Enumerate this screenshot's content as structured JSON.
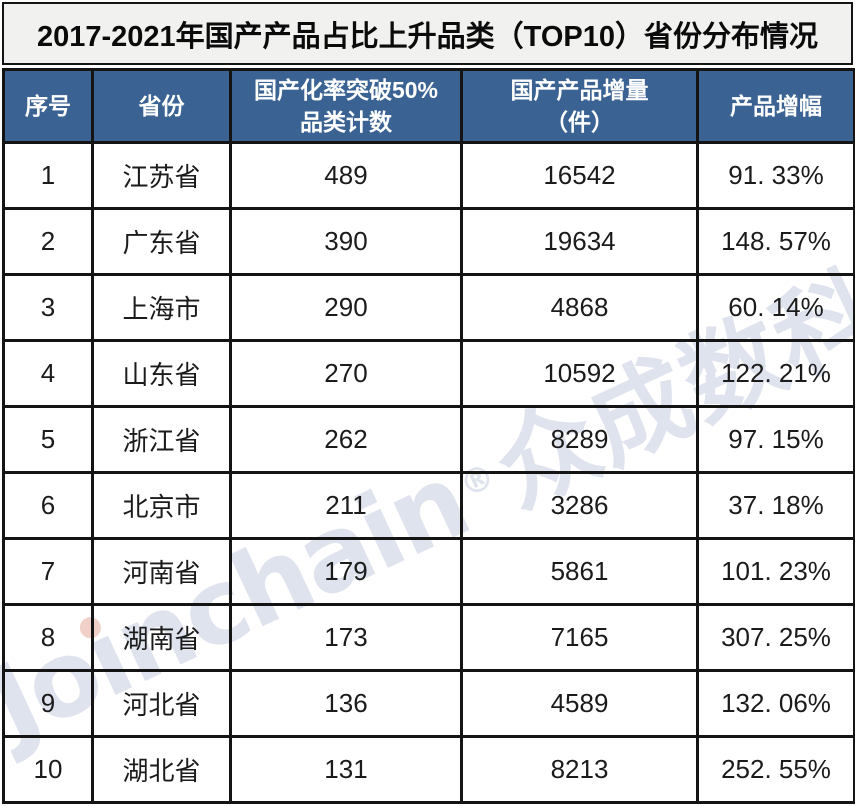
{
  "title": "2017-2021年国产产品占比上升品类（TOP10）省份分布情况",
  "watermark": {
    "text": "Joinchain®众成数科",
    "parts": [
      "Jo",
      "ı",
      "nchain"
    ],
    "reg": "®",
    "cjk": "众成数科",
    "color": "#DFE3EE",
    "dot_color": "#F1D0C9"
  },
  "colors": {
    "header_bg": "#3A6394",
    "header_text": "#FFFFFF",
    "title_bg": "#F1F1EF",
    "grid_border": "#141414",
    "body_text": "#1B1B1B"
  },
  "table": {
    "headers": [
      {
        "label": "序号",
        "lines": [
          "序号"
        ]
      },
      {
        "label": "省份",
        "lines": [
          "省份"
        ]
      },
      {
        "label": "国产化率突破50%品类计数",
        "lines": [
          "国产化率突破50%",
          "品类计数"
        ]
      },
      {
        "label": "国产产品增量（件）",
        "lines": [
          "国产产品增量",
          "（件）"
        ]
      },
      {
        "label": "产品增幅",
        "lines": [
          "产品增幅"
        ]
      }
    ],
    "rows": [
      [
        "1",
        "江苏省",
        "489",
        "16542",
        "91. 33%"
      ],
      [
        "2",
        "广东省",
        "390",
        "19634",
        "148. 57%"
      ],
      [
        "3",
        "上海市",
        "290",
        "4868",
        "60. 14%"
      ],
      [
        "4",
        "山东省",
        "270",
        "10592",
        "122. 21%"
      ],
      [
        "5",
        "浙江省",
        "262",
        "8289",
        "97. 15%"
      ],
      [
        "6",
        "北京市",
        "211",
        "3286",
        "37. 18%"
      ],
      [
        "7",
        "河南省",
        "179",
        "5861",
        "101. 23%"
      ],
      [
        "8",
        "湖南省",
        "173",
        "7165",
        "307. 25%"
      ],
      [
        "9",
        "河北省",
        "136",
        "4589",
        "132. 06%"
      ],
      [
        "10",
        "湖北省",
        "131",
        "8213",
        "252. 55%"
      ]
    ]
  },
  "chart_data": {
    "type": "table",
    "title": "2017-2021年国产产品占比上升品类（TOP10）省份分布情况",
    "columns": [
      "序号",
      "省份",
      "国产化率突破50%品类计数",
      "国产产品增量（件）",
      "产品增幅"
    ],
    "rows": [
      [
        1,
        "江苏省",
        489,
        16542,
        "91.33%"
      ],
      [
        2,
        "广东省",
        390,
        19634,
        "148.57%"
      ],
      [
        3,
        "上海市",
        290,
        4868,
        "60.14%"
      ],
      [
        4,
        "山东省",
        270,
        10592,
        "122.21%"
      ],
      [
        5,
        "浙江省",
        262,
        8289,
        "97.15%"
      ],
      [
        6,
        "北京市",
        211,
        3286,
        "37.18%"
      ],
      [
        7,
        "河南省",
        179,
        5861,
        "101.23%"
      ],
      [
        8,
        "湖南省",
        173,
        7165,
        "307.25%"
      ],
      [
        9,
        "河北省",
        136,
        4589,
        "132.06%"
      ],
      [
        10,
        "湖北省",
        131,
        8213,
        "252.55%"
      ]
    ],
    "watermark_text": "Joinchain®众成数科",
    "legend_position": "none",
    "grid": true
  }
}
